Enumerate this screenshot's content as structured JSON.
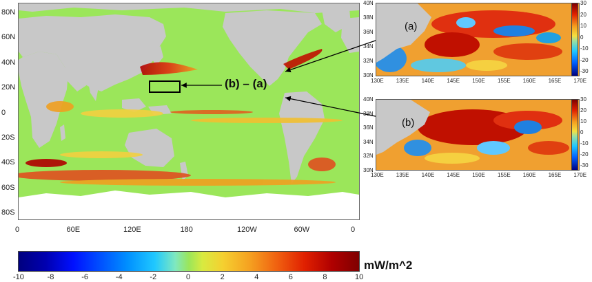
{
  "main_map": {
    "lat_ticks": [
      "80N",
      "60N",
      "40N",
      "20N",
      "0",
      "20S",
      "40S",
      "60S",
      "80S"
    ],
    "lon_ticks": [
      "0",
      "60E",
      "120E",
      "180",
      "120W",
      "60W",
      "0"
    ],
    "annotation": "(b) – (a)"
  },
  "colorbar": {
    "ticks": [
      "-10",
      "-8",
      "-6",
      "-4",
      "-2",
      "0",
      "2",
      "4",
      "6",
      "8",
      "10"
    ],
    "unit": "mW/m^2",
    "range": [
      -10,
      10
    ]
  },
  "panel_a": {
    "label": "(a)",
    "lat_ticks": [
      "40N",
      "38N",
      "36N",
      "34N",
      "32N",
      "30N"
    ],
    "lon_ticks": [
      "130E",
      "135E",
      "140E",
      "145E",
      "150E",
      "155E",
      "160E",
      "165E",
      "170E"
    ],
    "cbar_ticks": [
      "30",
      "20",
      "10",
      "0",
      "-10",
      "-20",
      "-30"
    ]
  },
  "panel_b": {
    "label": "(b)",
    "lat_ticks": [
      "40N",
      "38N",
      "36N",
      "34N",
      "32N",
      "30N"
    ],
    "lon_ticks": [
      "130E",
      "135E",
      "140E",
      "145E",
      "150E",
      "155E",
      "160E",
      "165E",
      "170E"
    ],
    "cbar_ticks": [
      "30",
      "20",
      "10",
      "0",
      "-10",
      "-20",
      "-30"
    ]
  },
  "colors": {
    "ocean_base": "#9be65a",
    "land": "#c8c8c8",
    "ice": "#ffffff"
  }
}
